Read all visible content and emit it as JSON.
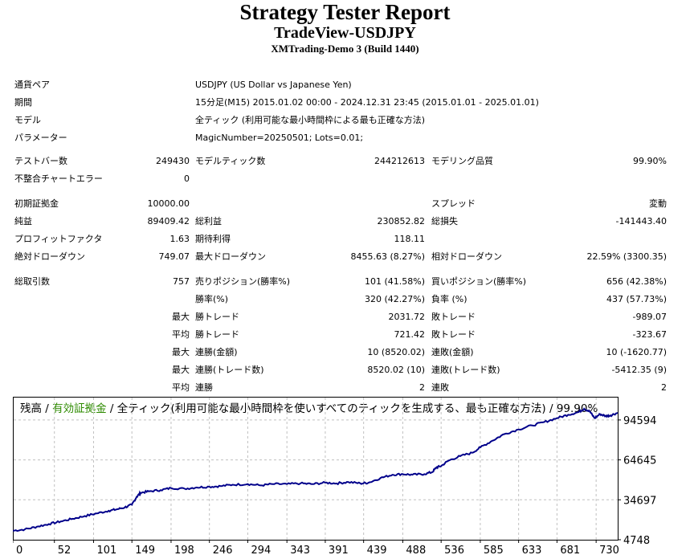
{
  "header": {
    "title": "Strategy Tester Report",
    "subtitle": "TradeView-USDJPY",
    "server": "XMTrading-Demo 3 (Build 1440)"
  },
  "info": {
    "symbol_label": "通貨ペア",
    "symbol_value": "USDJPY (US Dollar vs Japanese Yen)",
    "period_label": "期間",
    "period_value": "15分足(M15) 2015.01.02 00:00 - 2024.12.31 23:45 (2015.01.01 - 2025.01.01)",
    "model_label": "モデル",
    "model_value": "全ティック (利用可能な最小時間枠による最も正確な方法)",
    "params_label": "パラメーター",
    "params_value": "MagicNumber=20250501; Lots=0.01;"
  },
  "stats": {
    "bars_label": "テストバー数",
    "bars_value": "249430",
    "ticks_label": "モデルティック数",
    "ticks_value": "244212613",
    "quality_label": "モデリング品質",
    "quality_value": "99.90%",
    "mismatch_label": "不整合チャートエラー",
    "mismatch_value": "0",
    "deposit_label": "初期証拠金",
    "deposit_value": "10000.00",
    "spread_label": "スプレッド",
    "spread_value": "変動",
    "net_label": "純益",
    "net_value": "89409.42",
    "gross_profit_label": "総利益",
    "gross_profit_value": "230852.82",
    "gross_loss_label": "総損失",
    "gross_loss_value": "-141443.40",
    "pf_label": "プロフィットファクタ",
    "pf_value": "1.63",
    "expected_label": "期待利得",
    "expected_value": "118.11",
    "abs_dd_label": "絶対ドローダウン",
    "abs_dd_value": "749.07",
    "max_dd_label": "最大ドローダウン",
    "max_dd_value": "8455.63 (8.27%)",
    "rel_dd_label": "相対ドローダウン",
    "rel_dd_value": "22.59% (3300.35)",
    "total_trades_label": "総取引数",
    "total_trades_value": "757",
    "short_label": "売りポジション(勝率%)",
    "short_value": "101 (41.58%)",
    "long_label": "買いポジション(勝率%)",
    "long_value": "656 (42.38%)",
    "win_pct_label": "勝率(%)",
    "win_pct_value": "320 (42.27%)",
    "loss_pct_label": "負率 (%)",
    "loss_pct_value": "437 (57.73%)",
    "max_label": "最大",
    "avg_label": "平均",
    "largest_win_label": "勝トレード",
    "largest_win_value": "2031.72",
    "largest_loss_label": "敗トレード",
    "largest_loss_value": "-989.07",
    "avg_win_label": "勝トレード",
    "avg_win_value": "721.42",
    "avg_loss_label": "敗トレード",
    "avg_loss_value": "-323.67",
    "max_consec_win_label": "連勝(金額)",
    "max_consec_win_value": "10 (8520.02)",
    "max_consec_loss_label": "連敗(金額)",
    "max_consec_loss_value": "10 (-1620.77)",
    "max_consec_profit_label": "連勝(トレード数)",
    "max_consec_profit_value": "8520.02 (10)",
    "max_consec_lossamt_label": "連敗(トレード数)",
    "max_consec_lossamt_value": "-5412.35 (9)",
    "avg_consec_win_label": "連勝",
    "avg_consec_win_value": "2",
    "avg_consec_loss_label": "連敗",
    "avg_consec_loss_value": "2"
  },
  "chart_data": {
    "type": "line",
    "legend_balance": "残高",
    "legend_sep": " / ",
    "legend_equity": "有効証拠金",
    "legend_rest": " / 全ティック(利用可能な最小時間枠を使いすべてのティックを生成する、最も正確な方法) / 99.90%",
    "colors": {
      "balance": "#00008b",
      "equity": "#2e8b00",
      "grid": "#c0c0c0"
    },
    "y_ticks": [
      4748,
      34697,
      64645,
      94594
    ],
    "x_ticks": [
      0,
      52,
      101,
      149,
      198,
      246,
      294,
      343,
      391,
      439,
      488,
      536,
      585,
      633,
      681,
      730
    ],
    "xlim": [
      0,
      757
    ],
    "ylim": [
      4748,
      112000
    ],
    "grid": true,
    "series": [
      {
        "x": [
          0,
          15,
          30,
          45,
          60,
          75,
          90,
          105,
          120,
          130,
          140,
          149,
          155,
          160,
          170,
          185,
          198,
          215,
          230,
          246,
          260,
          275,
          294,
          310,
          325,
          343,
          360,
          375,
          391,
          405,
          420,
          435,
          445,
          460,
          475,
          488,
          500,
          515,
          525,
          530,
          536,
          545,
          560,
          575,
          585,
          600,
          615,
          633,
          650,
          665,
          681,
          695,
          708,
          715,
          722,
          728,
          735,
          742,
          748,
          757
        ],
        "y": [
          11500,
          12500,
          14500,
          16500,
          18500,
          20500,
          22500,
          24500,
          26500,
          27500,
          29000,
          31000,
          37000,
          40000,
          41000,
          42000,
          43500,
          43000,
          44000,
          44500,
          45000,
          46000,
          46500,
          45500,
          46500,
          46500,
          47000,
          46500,
          47500,
          47000,
          48000,
          47000,
          47500,
          51000,
          53500,
          54000,
          53500,
          54000,
          55500,
          59000,
          60000,
          64000,
          67500,
          70000,
          74000,
          79000,
          84000,
          87500,
          90500,
          93000,
          96000,
          98500,
          100500,
          103000,
          101000,
          96000,
          99000,
          97500,
          98000,
          100000
        ]
      }
    ]
  }
}
